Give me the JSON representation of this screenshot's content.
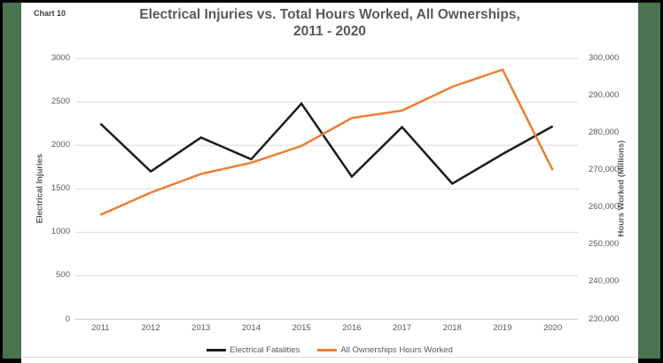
{
  "page": {
    "chart_label": "Chart 10"
  },
  "colors": {
    "series_black": "#1c1c1c",
    "series_orange": "#ED7D31",
    "slide_green": "#4A7350",
    "gridline": "#D9D9D9",
    "axis_line": "#C6C6C6",
    "text_gray": "#595959"
  },
  "chart_data": {
    "type": "line",
    "title_line1": "Electrical Injuries vs. Total Hours Worked, All Ownerships,",
    "title_line2": "2011 - 2020",
    "categories": [
      "2011",
      "2012",
      "2013",
      "2014",
      "2015",
      "2016",
      "2017",
      "2018",
      "2019",
      "2020"
    ],
    "series": [
      {
        "name": "Electrical Fatalities",
        "color": "#1c1c1c",
        "axis": "left",
        "values": [
          2250,
          1700,
          2090,
          1840,
          2480,
          1640,
          2210,
          1560,
          1900,
          2220
        ]
      },
      {
        "name": "All Ownerships Hours Worked",
        "color": "#ED7D31",
        "axis": "right",
        "values": [
          258000,
          264000,
          269000,
          272000,
          276500,
          284000,
          286000,
          292400,
          297000,
          270000
        ]
      }
    ],
    "left_axis": {
      "label": "Electrical Injuries",
      "min": 0,
      "max": 3000,
      "step": 500,
      "tick_labels": [
        "0",
        "500",
        "1000",
        "1500",
        "2000",
        "2500",
        "3000"
      ]
    },
    "right_axis": {
      "label": "Hours Worked (Millions)",
      "min": 230000,
      "max": 300000,
      "step": 10000,
      "tick_labels": [
        "230,000",
        "240,000",
        "250,000",
        "260,000",
        "270,000",
        "280,000",
        "290,000",
        "300,000"
      ]
    },
    "legend_position": "bottom",
    "grid": true
  }
}
